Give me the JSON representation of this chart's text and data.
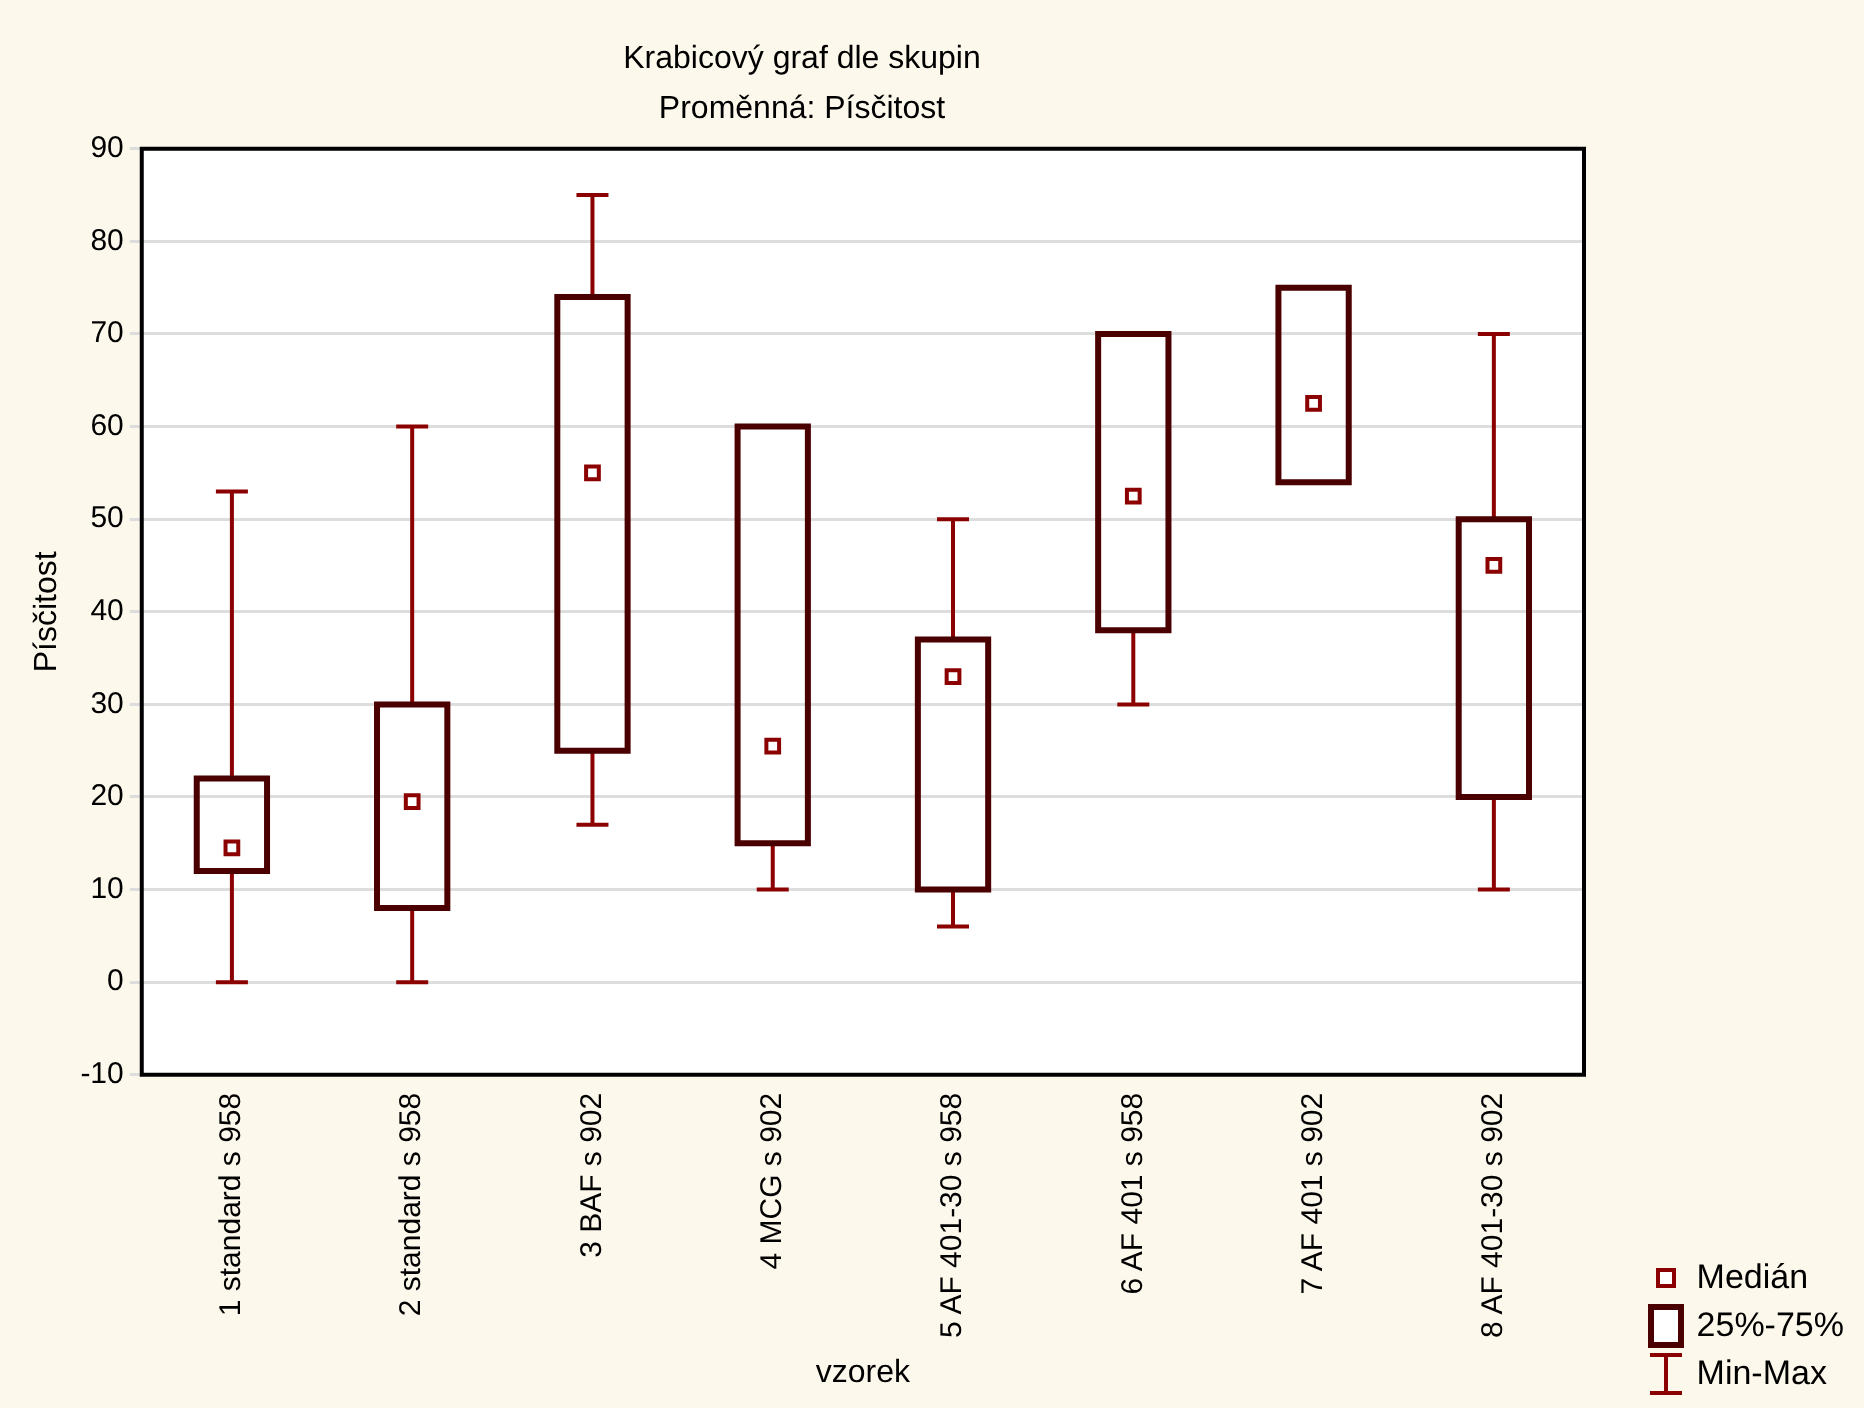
{
  "chart_data": {
    "type": "box",
    "title": "Krabicový graf dle skupin",
    "subtitle": "Proměnná: Písčitost",
    "xlabel": "vzorek",
    "ylabel": "Písčitost",
    "categories": [
      "1 standard s 958",
      "2 standard s 958",
      "3 BAF s 902",
      "4 MCG s 902",
      "5 AF 401-30 s 958",
      "6 AF 401 s 958",
      "7 AF 401 s 902",
      "8 AF 401-30 s 902"
    ],
    "series": [
      {
        "color": "#4a0000",
        "boxes": [
          {
            "low": 0,
            "q1": 12,
            "median": 14.5,
            "q3": 22,
            "high": 53
          },
          {
            "low": 0,
            "q1": 8,
            "median": 19.5,
            "q3": 30,
            "high": 60
          },
          {
            "low": 17,
            "q1": 25,
            "median": 55,
            "q3": 74,
            "high": 85
          },
          {
            "low": 10,
            "q1": 15,
            "median": 25.5,
            "q3": 60,
            "high": 60
          },
          {
            "low": 6,
            "q1": 10,
            "median": 33,
            "q3": 37,
            "high": 50
          },
          {
            "low": 30,
            "q1": 38,
            "median": 52.5,
            "q3": 70,
            "high": 70
          },
          {
            "low": 54,
            "q1": 54,
            "median": 62.5,
            "q3": 75,
            "high": 75
          },
          {
            "low": 10,
            "q1": 20,
            "median": 45,
            "q3": 50,
            "high": 70
          }
        ]
      }
    ],
    "ylim": [
      -10,
      90
    ],
    "yticks": [
      -10,
      0,
      10,
      20,
      30,
      40,
      50,
      60,
      70,
      80,
      90
    ],
    "grid": "y",
    "marker": "square",
    "annotations": [
      "Medián",
      "25%-75%",
      "Min-Max"
    ]
  }
}
